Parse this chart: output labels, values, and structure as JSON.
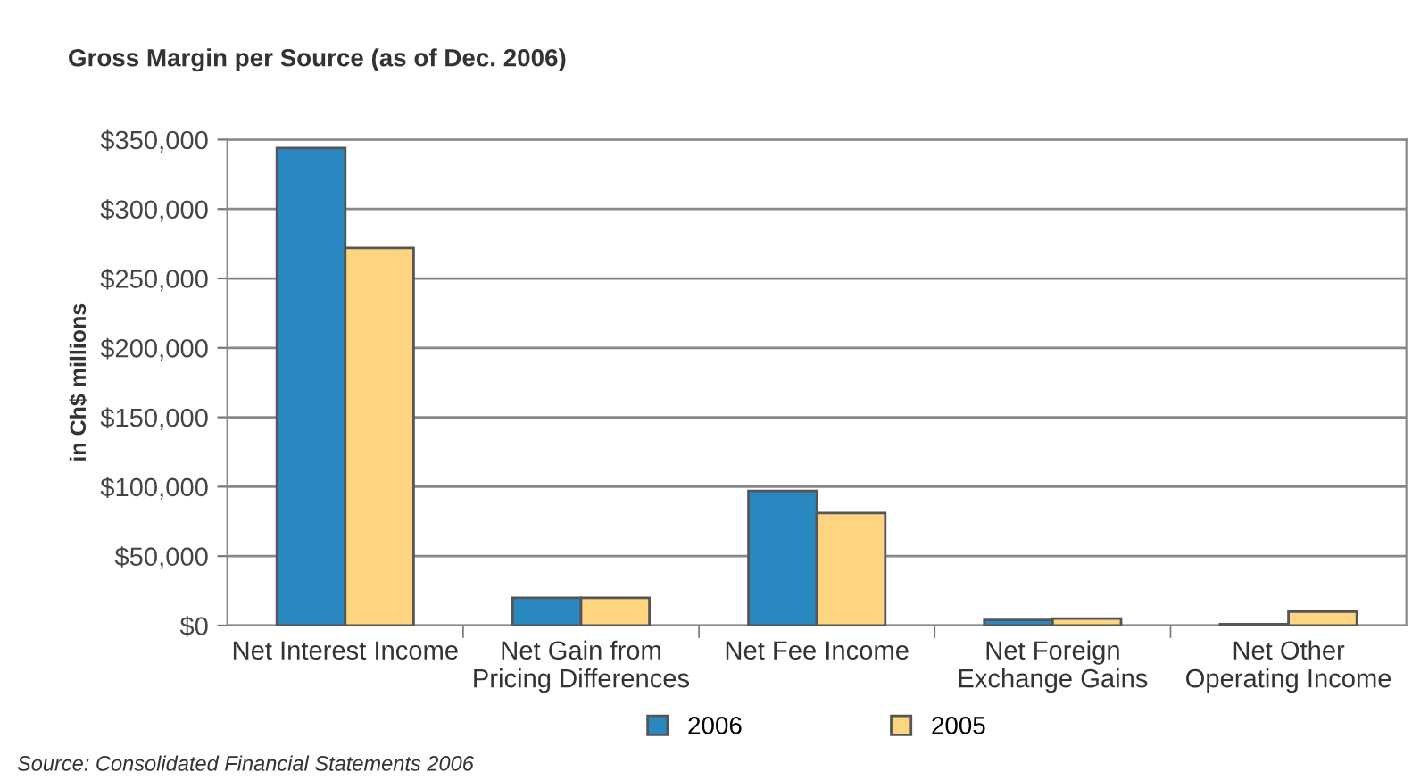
{
  "chart_data": {
    "type": "bar",
    "title": "Gross Margin per Source (as of Dec. 2006)",
    "ylabel": "in Ch$ millions",
    "categories": [
      "Net Interest Income",
      "Net Gain from\nPricing Differences",
      "Net Fee Income",
      "Net Foreign\nExchange Gains",
      "Net Other\nOperating Income"
    ],
    "series": [
      {
        "name": "2006",
        "color": "#2a88c0",
        "values": [
          344000,
          20000,
          97000,
          4000,
          1000
        ]
      },
      {
        "name": "2005",
        "color": "#fdd581",
        "values": [
          272000,
          20000,
          81000,
          5000,
          10000
        ]
      }
    ],
    "ylim": [
      0,
      350000
    ],
    "yticks": [
      {
        "value": 0,
        "label": "$0"
      },
      {
        "value": 50000,
        "label": "$50,000"
      },
      {
        "value": 100000,
        "label": "$100,000"
      },
      {
        "value": 150000,
        "label": "$150,000"
      },
      {
        "value": 200000,
        "label": "$200,000"
      },
      {
        "value": 250000,
        "label": "$250,000"
      },
      {
        "value": 300000,
        "label": "$300,000"
      },
      {
        "value": 350000,
        "label": "$350,000"
      }
    ],
    "grid": "y",
    "legend": "bottom",
    "annotations": [
      "Source: Consolidated Financial Statements 2006"
    ]
  }
}
